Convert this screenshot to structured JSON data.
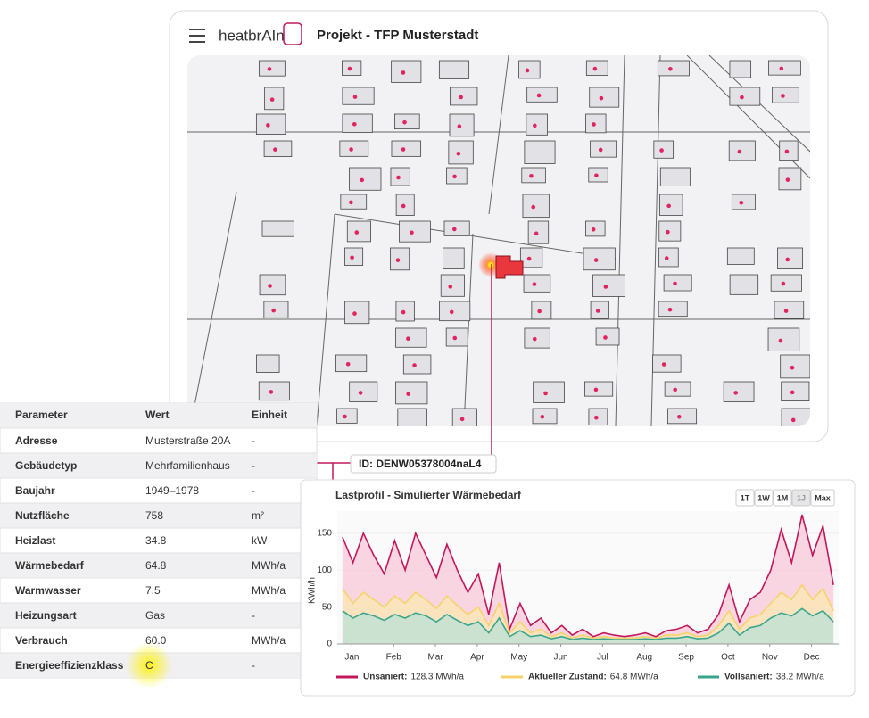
{
  "header": {
    "logo": "heatbrAIn",
    "title": "Projekt - TFP Musterstadt"
  },
  "building_id": "ID: DENW05378004naL4",
  "table": {
    "header": [
      "Parameter",
      "Wert",
      "Einheit"
    ],
    "rows": [
      [
        "Adresse",
        "Musterstraße 20A",
        "-"
      ],
      [
        "Gebäudetyp",
        "Mehrfamilienhaus",
        "-"
      ],
      [
        "Baujahr",
        "1949–1978",
        "-"
      ],
      [
        "Nutzfläche",
        "758",
        "m²"
      ],
      [
        "Heizlast",
        "34.8",
        "kW"
      ],
      [
        "Wärmebedarf",
        "64.8",
        "MWh/a"
      ],
      [
        "Warmwasser",
        "7.5",
        "MWh/a"
      ],
      [
        "Heizungsart",
        "Gas",
        "-"
      ],
      [
        "Verbrauch",
        "60.0",
        "MWh/a"
      ],
      [
        "Energieeffizienzklass",
        "C",
        "-"
      ]
    ]
  },
  "chart_data": {
    "type": "area",
    "title": "Lastprofil - Simulierter Wärmebedarf",
    "y_label": "KWh/h",
    "range_buttons": [
      "1T",
      "1W",
      "1M",
      "1J",
      "Max"
    ],
    "active_range": "1J",
    "x": [
      0.125,
      0.375,
      0.625,
      0.875,
      1.125,
      1.375,
      1.625,
      1.875,
      2.125,
      2.375,
      2.625,
      2.875,
      3.125,
      3.375,
      3.625,
      3.875,
      4.125,
      4.375,
      4.625,
      4.875,
      5.125,
      5.375,
      5.625,
      5.875,
      6.125,
      6.375,
      6.625,
      6.875,
      7.125,
      7.375,
      7.625,
      7.875,
      8.125,
      8.375,
      8.625,
      8.875,
      9.125,
      9.375,
      9.625,
      9.875,
      10.125,
      10.375,
      10.625,
      10.875,
      11.125,
      11.375,
      11.625,
      11.875
    ],
    "xlim": [
      0,
      12
    ],
    "xticks": [
      {
        "value": 0.35,
        "label": "Jan"
      },
      {
        "value": 1.35,
        "label": "Feb"
      },
      {
        "value": 2.35,
        "label": "Mar"
      },
      {
        "value": 3.35,
        "label": "Apr"
      },
      {
        "value": 4.35,
        "label": "May"
      },
      {
        "value": 5.35,
        "label": "Jun"
      },
      {
        "value": 6.35,
        "label": "Jul"
      },
      {
        "value": 7.35,
        "label": "Aug"
      },
      {
        "value": 8.35,
        "label": "Sep"
      },
      {
        "value": 9.35,
        "label": "Oct"
      },
      {
        "value": 10.35,
        "label": "Nov"
      },
      {
        "value": 11.35,
        "label": "Dec"
      }
    ],
    "ylim": [
      0,
      180
    ],
    "yticks": [
      0,
      50,
      100,
      150
    ],
    "series": [
      {
        "name": "Unsaniert:",
        "total": "128.3 MWh/a",
        "color": "#c2185b",
        "fill": "#f8c8d8",
        "values": [
          145,
          110,
          150,
          120,
          95,
          140,
          100,
          150,
          120,
          90,
          135,
          100,
          70,
          95,
          40,
          110,
          20,
          55,
          25,
          35,
          15,
          25,
          12,
          20,
          10,
          15,
          12,
          10,
          12,
          15,
          10,
          18,
          20,
          25,
          15,
          20,
          40,
          80,
          30,
          60,
          70,
          100,
          155,
          110,
          175,
          120,
          160,
          80
        ]
      },
      {
        "name": "Aktueller Zustand:",
        "total": "64.8 MWh/a",
        "color": "#f5d36b",
        "fill": "#fbe8b0",
        "values": [
          75,
          55,
          70,
          60,
          50,
          65,
          55,
          70,
          60,
          48,
          65,
          52,
          40,
          50,
          25,
          55,
          15,
          30,
          15,
          20,
          10,
          15,
          8,
          12,
          8,
          10,
          8,
          8,
          8,
          10,
          8,
          12,
          12,
          15,
          10,
          12,
          25,
          45,
          20,
          35,
          40,
          55,
          70,
          60,
          80,
          60,
          75,
          45
        ]
      },
      {
        "name": "Vollsaniert:",
        "total": "38.2 MWh/a",
        "color": "#3aa58f",
        "fill": "#b9e2d6",
        "values": [
          45,
          35,
          42,
          38,
          32,
          40,
          35,
          42,
          38,
          30,
          40,
          32,
          25,
          30,
          15,
          35,
          10,
          18,
          10,
          12,
          7,
          10,
          6,
          8,
          6,
          7,
          6,
          6,
          6,
          7,
          6,
          8,
          8,
          10,
          7,
          8,
          15,
          28,
          12,
          22,
          25,
          35,
          42,
          38,
          48,
          38,
          45,
          30
        ]
      }
    ]
  }
}
